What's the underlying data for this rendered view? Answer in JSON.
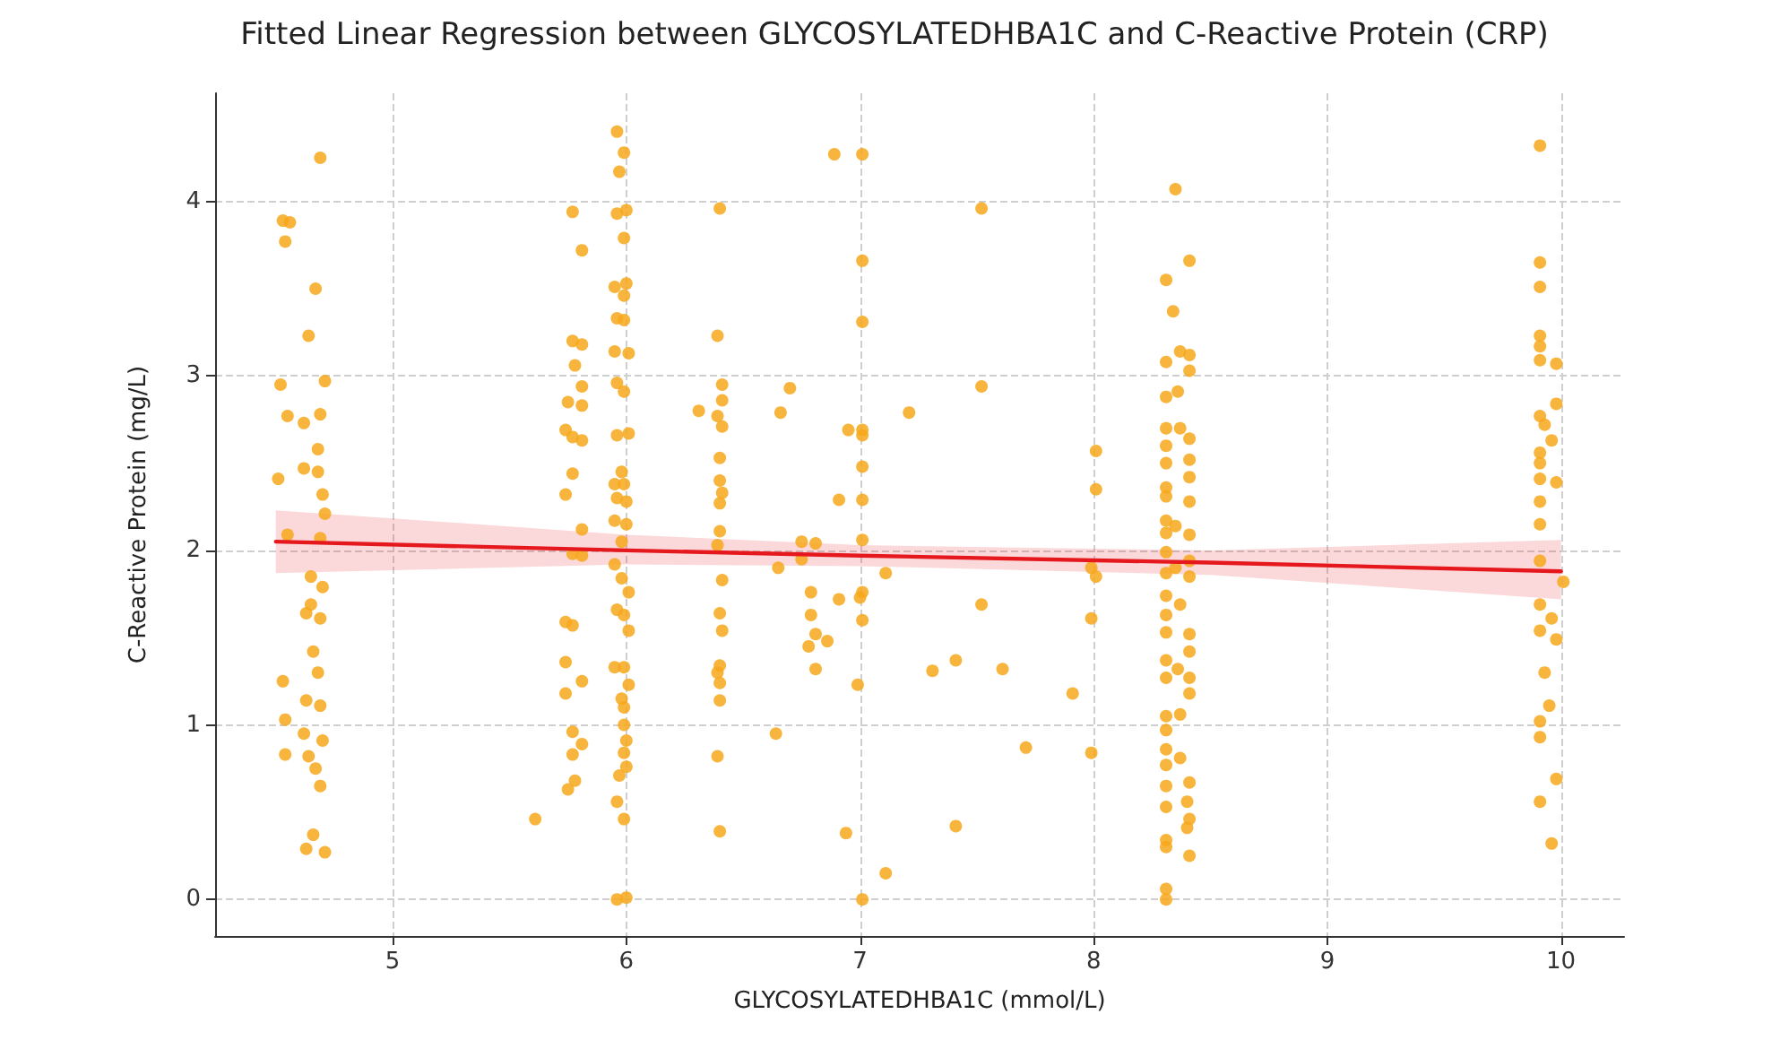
{
  "chart_data": {
    "type": "scatter",
    "title": "Fitted Linear Regression between GLYCOSYLATEDHBA1C and C-Reactive Protein (CRP)",
    "xlabel": "GLYCOSYLATEDHBA1C (mmol/L)",
    "ylabel": "C-Reactive Protein (mg/L)",
    "xlim": [
      4.24,
      10.27
    ],
    "ylim": [
      -0.21,
      4.62
    ],
    "xticks": [
      5,
      6,
      7,
      8,
      9,
      10
    ],
    "yticks": [
      0,
      1,
      2,
      3,
      4
    ],
    "grid": true,
    "series": [
      {
        "color": "#f7a81b",
        "marker": "circle",
        "x": [
          4.69,
          4.53,
          4.56,
          4.54,
          4.67,
          4.64,
          4.52,
          4.71,
          4.55,
          4.62,
          4.69,
          4.68,
          4.62,
          4.68,
          4.7,
          4.51,
          4.71,
          4.55,
          4.69,
          4.65,
          4.7,
          4.65,
          4.63,
          4.69,
          4.66,
          4.68,
          4.53,
          4.63,
          4.69,
          4.54,
          4.62,
          4.7,
          4.54,
          4.64,
          4.67,
          4.69,
          4.66,
          4.63,
          4.71,
          5.77,
          5.81,
          5.77,
          5.81,
          5.78,
          5.81,
          5.75,
          5.81,
          5.74,
          5.77,
          5.81,
          5.77,
          5.74,
          5.81,
          5.77,
          5.81,
          5.74,
          5.77,
          5.74,
          5.81,
          5.74,
          5.77,
          5.81,
          5.77,
          5.78,
          5.75,
          5.61,
          5.96,
          5.99,
          5.97,
          5.96,
          6.0,
          5.99,
          5.95,
          6.0,
          5.99,
          5.96,
          5.99,
          5.95,
          6.01,
          5.96,
          5.99,
          5.96,
          6.01,
          5.98,
          5.95,
          5.99,
          5.96,
          6.0,
          5.95,
          6.0,
          5.98,
          5.95,
          5.98,
          6.01,
          5.96,
          5.99,
          6.01,
          5.95,
          5.99,
          6.01,
          5.98,
          5.99,
          5.99,
          6.0,
          5.99,
          6.0,
          5.97,
          5.96,
          5.99,
          5.96,
          6.0,
          6.4,
          6.39,
          6.41,
          6.41,
          6.39,
          6.41,
          6.4,
          6.4,
          6.41,
          6.4,
          6.4,
          6.39,
          6.41,
          6.4,
          6.41,
          6.4,
          6.39,
          6.4,
          6.4,
          6.39,
          6.4,
          6.31,
          6.7,
          6.66,
          6.65,
          6.64,
          6.75,
          6.81,
          6.75,
          6.79,
          6.79,
          6.81,
          6.78,
          6.86,
          6.81,
          6.91,
          6.91,
          6.95,
          6.89,
          7.01,
          7.01,
          7.01,
          7.01,
          7.01,
          7.01,
          7.01,
          7.01,
          7.01,
          7.0,
          7.01,
          6.99,
          6.94,
          7.01,
          7.11,
          7.11,
          7.21,
          7.31,
          7.41,
          7.41,
          7.52,
          7.52,
          7.52,
          7.61,
          7.71,
          7.91,
          8.01,
          8.01,
          7.99,
          8.01,
          7.99,
          7.99,
          8.35,
          8.41,
          8.31,
          8.34,
          8.37,
          8.41,
          8.31,
          8.41,
          8.36,
          8.31,
          8.31,
          8.37,
          8.41,
          8.31,
          8.41,
          8.31,
          8.41,
          8.31,
          8.31,
          8.41,
          8.31,
          8.35,
          8.31,
          8.41,
          8.31,
          8.41,
          8.35,
          8.31,
          8.41,
          8.31,
          8.37,
          8.31,
          8.41,
          8.31,
          8.41,
          8.31,
          8.36,
          8.31,
          8.41,
          8.41,
          8.37,
          8.31,
          8.31,
          8.31,
          8.37,
          8.31,
          8.41,
          8.31,
          8.4,
          8.31,
          8.41,
          8.4,
          8.31,
          8.31,
          8.41,
          8.31,
          8.31,
          9.91,
          9.91,
          9.91,
          9.91,
          9.91,
          9.91,
          9.98,
          9.98,
          9.91,
          9.93,
          9.96,
          9.91,
          9.91,
          9.91,
          9.98,
          9.91,
          9.91,
          9.91,
          10.01,
          9.91,
          9.96,
          9.91,
          9.98,
          9.93,
          9.95,
          9.91,
          9.91,
          9.98,
          9.91,
          9.96
        ],
        "values": [
          4.25,
          3.89,
          3.88,
          3.77,
          3.5,
          3.23,
          2.95,
          2.97,
          2.77,
          2.73,
          2.78,
          2.58,
          2.47,
          2.45,
          2.32,
          2.41,
          2.21,
          2.09,
          2.07,
          1.85,
          1.79,
          1.69,
          1.64,
          1.61,
          1.42,
          1.3,
          1.25,
          1.14,
          1.11,
          1.03,
          0.95,
          0.91,
          0.83,
          0.82,
          0.75,
          0.65,
          0.37,
          0.29,
          0.27,
          3.94,
          3.72,
          3.2,
          3.18,
          3.06,
          2.94,
          2.85,
          2.83,
          2.69,
          2.65,
          2.63,
          2.44,
          2.32,
          2.12,
          1.98,
          1.97,
          1.59,
          1.57,
          1.36,
          1.25,
          1.18,
          0.96,
          0.89,
          0.83,
          0.68,
          0.63,
          0.46,
          4.4,
          4.28,
          4.17,
          3.93,
          3.95,
          3.79,
          3.51,
          3.53,
          3.46,
          3.33,
          3.32,
          3.14,
          3.13,
          2.96,
          2.91,
          2.66,
          2.67,
          2.45,
          2.38,
          2.38,
          2.3,
          2.28,
          2.17,
          2.15,
          2.05,
          1.92,
          1.84,
          1.76,
          1.66,
          1.63,
          1.54,
          1.33,
          1.33,
          1.23,
          1.15,
          1.1,
          1.0,
          0.91,
          0.84,
          0.76,
          0.71,
          0.56,
          0.46,
          0.0,
          0.01,
          3.96,
          3.23,
          2.95,
          2.86,
          2.77,
          2.71,
          2.53,
          2.4,
          2.33,
          2.27,
          2.11,
          2.03,
          1.83,
          1.64,
          1.54,
          1.34,
          1.3,
          1.24,
          1.14,
          0.82,
          0.39,
          2.8,
          2.93,
          2.79,
          1.9,
          0.95,
          2.05,
          2.04,
          1.95,
          1.76,
          1.63,
          1.52,
          1.45,
          1.48,
          1.32,
          2.29,
          1.72,
          2.69,
          4.27,
          4.27,
          3.66,
          3.31,
          2.69,
          2.66,
          2.48,
          2.29,
          2.06,
          1.76,
          1.73,
          1.6,
          1.23,
          0.38,
          0.0,
          0.15,
          1.87,
          2.79,
          1.31,
          1.37,
          0.42,
          3.96,
          2.94,
          1.69,
          1.32,
          0.87,
          1.18,
          2.57,
          2.35,
          1.9,
          1.85,
          1.61,
          0.84,
          4.07,
          3.66,
          3.55,
          3.37,
          3.14,
          3.12,
          3.08,
          3.03,
          2.91,
          2.88,
          2.7,
          2.7,
          2.64,
          2.6,
          2.52,
          2.5,
          2.42,
          2.36,
          2.31,
          2.28,
          2.17,
          2.14,
          2.1,
          2.09,
          1.99,
          1.94,
          1.9,
          1.87,
          1.85,
          1.74,
          1.69,
          1.63,
          1.52,
          1.53,
          1.42,
          1.37,
          1.32,
          1.27,
          1.27,
          1.18,
          1.06,
          1.05,
          0.97,
          0.86,
          0.81,
          0.77,
          0.67,
          0.65,
          0.56,
          0.53,
          0.46,
          0.41,
          0.34,
          0.3,
          0.25,
          0.06,
          0.0,
          4.32,
          3.65,
          3.51,
          3.23,
          3.17,
          3.09,
          3.07,
          2.84,
          2.77,
          2.72,
          2.63,
          2.56,
          2.5,
          2.41,
          2.39,
          2.28,
          2.15,
          1.94,
          1.82,
          1.69,
          1.61,
          1.54,
          1.49,
          1.3,
          1.11,
          1.02,
          0.93,
          0.69,
          0.56,
          0.32
        ]
      },
      {
        "type": "line",
        "color": "#e5181e",
        "marker": "none",
        "line_style": "solid",
        "x": [
          4.5,
          6,
          7,
          8.5,
          10
        ],
        "values": [
          2.05,
          2.0,
          1.97,
          1.93,
          1.88
        ],
        "lower": [
          1.87,
          1.92,
          1.91,
          1.86,
          1.72
        ],
        "upper": [
          2.23,
          2.09,
          2.03,
          2.0,
          2.06
        ]
      }
    ]
  }
}
